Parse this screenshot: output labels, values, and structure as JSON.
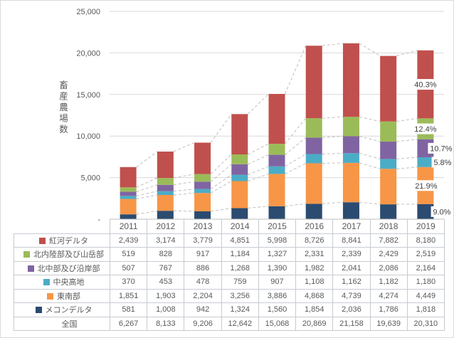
{
  "figure": {
    "background": "#ffffff",
    "border_color": "#d9d9d9"
  },
  "chart_data": {
    "type": "bar",
    "stacked": true,
    "title": "",
    "xlabel": "",
    "ylabel": "畜産農場数",
    "grid": true,
    "legend_position": "in-table-left",
    "categories": [
      "2011",
      "2012",
      "2013",
      "2014",
      "2015",
      "2016",
      "2017",
      "2018",
      "2019"
    ],
    "y_axis": {
      "range": [
        0,
        25000
      ],
      "tick_interval": 5000,
      "ticks": [
        {
          "value": 0,
          "label": "-"
        },
        {
          "value": 5000,
          "label": "5,000"
        },
        {
          "value": 10000,
          "label": "10,000"
        },
        {
          "value": 15000,
          "label": "15,000"
        },
        {
          "value": 20000,
          "label": "20,000"
        },
        {
          "value": 25000,
          "label": "25,000"
        }
      ]
    },
    "series": [
      {
        "name": "紅河デルタ",
        "color": "#c0504d",
        "values": [
          2439,
          3174,
          3779,
          4851,
          5998,
          8726,
          8841,
          7882,
          8180
        ],
        "pct_label_2019": "40.3%",
        "pct_dx": 0
      },
      {
        "name": "北内陸部及び山岳部",
        "color": "#9bbb59",
        "values": [
          519,
          828,
          917,
          1184,
          1327,
          2331,
          2339,
          2429,
          2519
        ],
        "pct_label_2019": "12.4%",
        "pct_dx": 0
      },
      {
        "name": "北中部及び沿岸部",
        "color": "#8064a2",
        "values": [
          507,
          767,
          886,
          1268,
          1390,
          1982,
          2041,
          2086,
          2164
        ],
        "pct_label_2019": "10.7%",
        "pct_dx": 22
      },
      {
        "name": "中央高地",
        "color": "#4bacc6",
        "values": [
          370,
          453,
          478,
          759,
          907,
          1108,
          1162,
          1182,
          1180
        ],
        "pct_label_2019": "5.8%",
        "pct_dx": 24
      },
      {
        "name": "東南部",
        "color": "#f79646",
        "values": [
          1851,
          1903,
          2204,
          3256,
          3886,
          4868,
          4739,
          4274,
          4449
        ],
        "pct_label_2019": "21.9%",
        "pct_dx": 1
      },
      {
        "name": "メコンデルタ",
        "color": "#2b4b70",
        "values": [
          581,
          1008,
          942,
          1324,
          1560,
          1854,
          2036,
          1786,
          1818
        ],
        "pct_label_2019": "9.0%",
        "pct_dx": 23
      }
    ],
    "total_row": {
      "label": "全国",
      "values": [
        "6,267",
        "8,133",
        "9,206",
        "12,642",
        "15,068",
        "20,869",
        "21,158",
        "19,639",
        "20,310"
      ]
    },
    "styles": {
      "gridline_color": "#d9d9d9",
      "axis_line_color": "#bfbfbf",
      "series_line_color": "#bfbfbf",
      "tick_label_color": "#595959",
      "pct_label_color": "#3f3f3f",
      "pct_label_bg": "#ffffff"
    }
  }
}
